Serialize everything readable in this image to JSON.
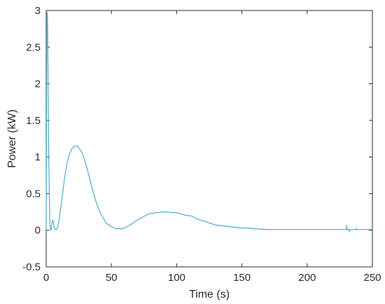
{
  "chart_data": {
    "type": "line",
    "title": "",
    "xlabel": "Time (s)",
    "ylabel": "Power (kW)",
    "xlim": [
      0,
      250
    ],
    "ylim": [
      -0.5,
      3
    ],
    "xticks": [
      0,
      50,
      100,
      150,
      200,
      250
    ],
    "yticks": [
      -0.5,
      0,
      0.5,
      1,
      1.5,
      2,
      2.5,
      3
    ],
    "xtick_labels": [
      "0",
      "50",
      "100",
      "150",
      "200",
      "250"
    ],
    "ytick_labels": [
      "-0.5",
      "0",
      "0.5",
      "1",
      "1.5",
      "2",
      "2.5",
      "3"
    ],
    "grid": false,
    "box": true,
    "colors": {
      "line": "#4aa7cf",
      "axis": "#262626"
    },
    "series": [
      {
        "name": "",
        "x": [
          0,
          0.5,
          0.9,
          1.2,
          1.6,
          2,
          2.4,
          2.8,
          3.2,
          3.6,
          4,
          4.5,
          5,
          5.5,
          6,
          6.5,
          7,
          8,
          9,
          10,
          12,
          14,
          16,
          18,
          20,
          22,
          24,
          25,
          26,
          27,
          28,
          30,
          32,
          34,
          36,
          38,
          40,
          42,
          44,
          46,
          48,
          50,
          52,
          54,
          56,
          58,
          60,
          62,
          64,
          66,
          68,
          70,
          72,
          74,
          76,
          78,
          80,
          82,
          84,
          86,
          88,
          90,
          92,
          94,
          96,
          98,
          100,
          102,
          104,
          106,
          108,
          110,
          112,
          114,
          116,
          118,
          120,
          125,
          130,
          135,
          140,
          145,
          150,
          155,
          160,
          170,
          180,
          190,
          200,
          210,
          220,
          230,
          230.3,
          230.6,
          231,
          232,
          232.2,
          232.5,
          233,
          236,
          237.6,
          237.8,
          238,
          240,
          245,
          250
        ],
        "y": [
          0,
          2.98,
          2.95,
          2.6,
          1.8,
          1.0,
          0.45,
          0.1,
          0.02,
          0.0,
          0.03,
          0.1,
          0.14,
          0.1,
          0.05,
          0.02,
          0.01,
          0.01,
          0.05,
          0.15,
          0.42,
          0.7,
          0.92,
          1.05,
          1.12,
          1.15,
          1.15,
          1.12,
          1.1,
          1.07,
          1.04,
          0.93,
          0.8,
          0.66,
          0.52,
          0.4,
          0.3,
          0.22,
          0.16,
          0.1,
          0.07,
          0.05,
          0.03,
          0.02,
          0.02,
          0.02,
          0.03,
          0.05,
          0.07,
          0.09,
          0.12,
          0.14,
          0.16,
          0.18,
          0.2,
          0.22,
          0.23,
          0.23,
          0.24,
          0.24,
          0.25,
          0.25,
          0.25,
          0.25,
          0.24,
          0.24,
          0.24,
          0.23,
          0.22,
          0.21,
          0.2,
          0.2,
          0.19,
          0.17,
          0.15,
          0.14,
          0.13,
          0.1,
          0.07,
          0.06,
          0.05,
          0.04,
          0.03,
          0.03,
          0.02,
          0.01,
          0.01,
          0.01,
          0.01,
          0.01,
          0.01,
          0.01,
          0.07,
          0.01,
          0.01,
          0.01,
          -0.02,
          0.01,
          0.01,
          0.01,
          0.01,
          0.03,
          0.01,
          0.01,
          0.01,
          0.01
        ]
      }
    ]
  }
}
